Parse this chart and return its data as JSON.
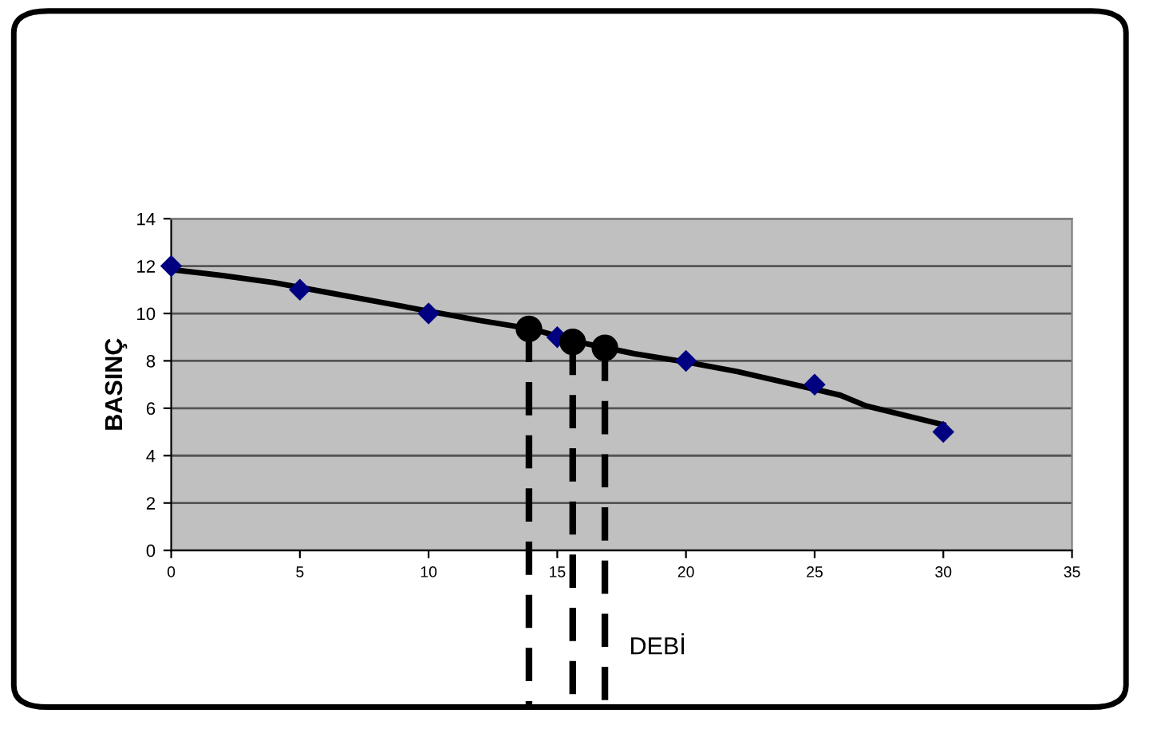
{
  "chart_data": {
    "type": "scatter",
    "xlabel": "DEBİ",
    "ylabel": "BASINÇ",
    "xlim": [
      0,
      35
    ],
    "xticks": [
      0,
      5,
      10,
      15,
      20,
      25,
      30,
      35
    ],
    "ylim": [
      0,
      14
    ],
    "yticks": [
      0,
      2,
      4,
      6,
      8,
      10,
      12,
      14
    ],
    "grid": "y",
    "series": [
      {
        "color": "#000080",
        "marker": "diamond",
        "x": [
          0,
          5,
          10,
          15,
          20,
          25,
          30
        ],
        "values": [
          12,
          11,
          10,
          9,
          8,
          7,
          5
        ]
      },
      {
        "type": "line",
        "color": "#000000",
        "marker": "none",
        "x": [
          0,
          2,
          4,
          6,
          8,
          10,
          12,
          14,
          16,
          18,
          20,
          22,
          24,
          26,
          27,
          30
        ],
        "values": [
          11.85,
          11.6,
          11.3,
          10.9,
          10.5,
          10.1,
          9.7,
          9.35,
          8.75,
          8.3,
          7.95,
          7.55,
          7.05,
          6.55,
          6.1,
          5.3
        ]
      },
      {
        "type": "scatter",
        "color": "#000000",
        "marker": "circle",
        "x": [
          13.9,
          15.6,
          16.85
        ],
        "values": [
          9.35,
          8.8,
          8.55
        ]
      }
    ],
    "ref_lines": [
      {
        "axis": "x",
        "value": 13.9,
        "color": "#000000",
        "line_style": "dashed"
      },
      {
        "axis": "x",
        "value": 15.6,
        "color": "#000000",
        "line_style": "dashed"
      },
      {
        "axis": "x",
        "value": 16.85,
        "color": "#000000",
        "line_style": "dashed"
      }
    ]
  }
}
